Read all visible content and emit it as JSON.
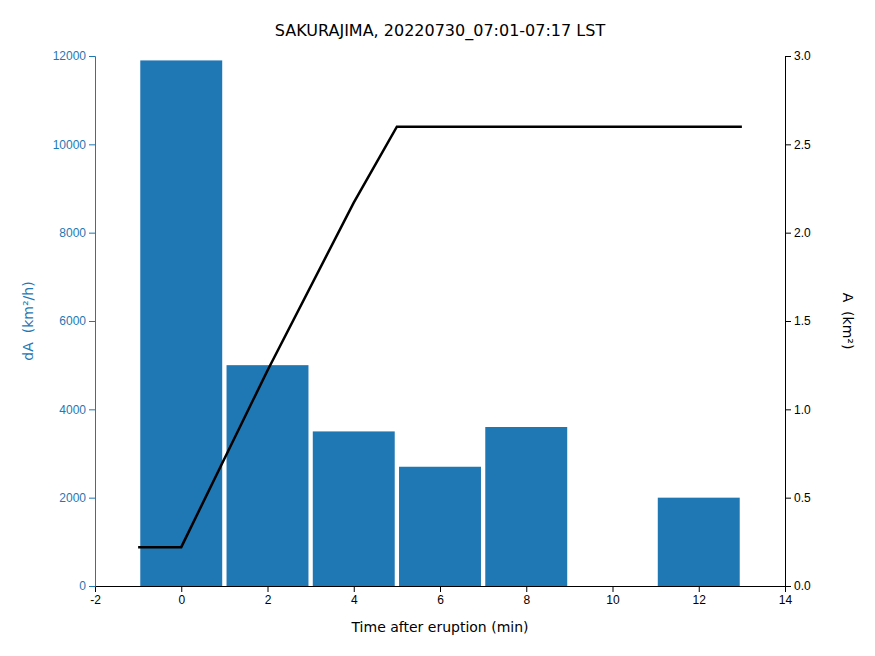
{
  "chart_data": {
    "type": "bar",
    "title": "SAKURAJIMA, 20220730_07:01-07:17 LST",
    "xlabel": "Time after eruption (min)",
    "ylabel": "dA  (km²/h)",
    "y2label": "A  (km²)",
    "xlim": [
      -2,
      14
    ],
    "xticks": [
      -2,
      0,
      2,
      4,
      6,
      8,
      10,
      12,
      14
    ],
    "ylim": [
      0,
      12000
    ],
    "yticks": [
      0,
      2000,
      4000,
      6000,
      8000,
      10000,
      12000
    ],
    "y2lim": [
      0,
      3
    ],
    "y2ticks": [
      {
        "value": 0,
        "label": "0.0"
      },
      0.5,
      {
        "value": 1.0,
        "label": "1.0"
      },
      1.5,
      {
        "value": 2.0,
        "label": "2.0"
      },
      2.5,
      {
        "value": 3.0,
        "label": "3.0"
      }
    ],
    "grid": false,
    "series": [
      {
        "type": "bar",
        "color": "#1f77b4",
        "x": [
          0,
          2,
          4,
          6,
          8,
          12
        ],
        "values": [
          11900,
          5000,
          3500,
          2700,
          3600,
          2000
        ]
      },
      {
        "type": "line",
        "axis": "y2",
        "color": "black",
        "x": [
          -1,
          0,
          2,
          4,
          5,
          6,
          7,
          8,
          9,
          10,
          11,
          12,
          13
        ],
        "values": [
          0.22,
          0.22,
          1.22,
          2.17,
          2.6,
          2.6,
          2.6,
          2.6,
          2.6,
          2.6,
          2.6,
          2.6,
          2.6
        ]
      }
    ]
  }
}
